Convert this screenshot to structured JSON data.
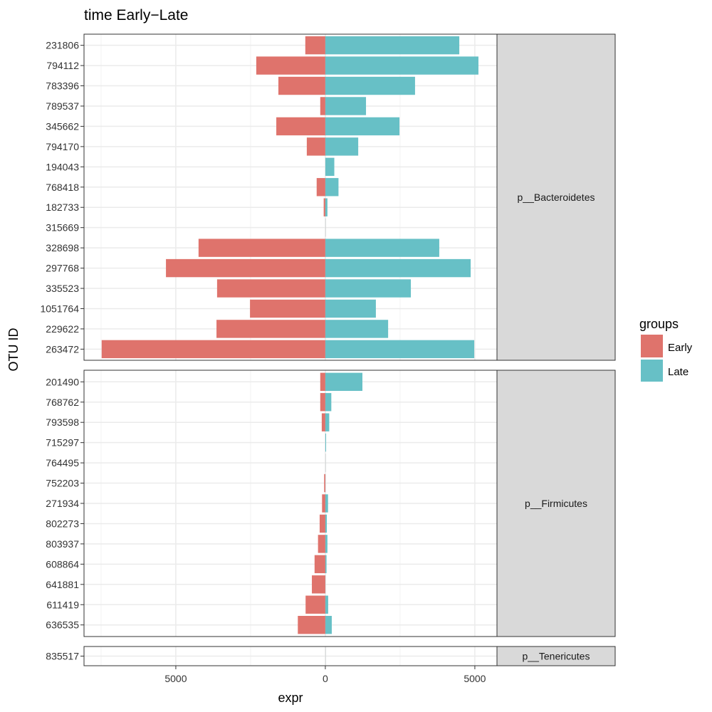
{
  "chart_data": {
    "type": "bar",
    "orientation": "horizontal",
    "title": "time Early−Late",
    "xlabel": "expr",
    "ylabel": "OTU ID",
    "xlim": [
      -8070,
      5740
    ],
    "x_ticks": [
      -5000,
      0,
      5000
    ],
    "x_tick_labels": [
      "5000",
      "0",
      "5000"
    ],
    "grid": true,
    "legend": {
      "title": "groups",
      "position": "right",
      "entries": [
        "Early",
        "Late"
      ]
    },
    "colors": {
      "Early": "#df736c",
      "Late": "#67c0c6"
    },
    "facets": [
      {
        "label": "p__Bacteroidetes",
        "categories": [
          "231806",
          "794112",
          "783396",
          "789537",
          "345662",
          "794170",
          "194043",
          "768418",
          "182733",
          "315669",
          "328698",
          "297768",
          "335523",
          "1051764",
          "229622",
          "263472"
        ],
        "series": [
          {
            "name": "Early",
            "values": [
              -670,
              -2310,
              -1570,
              -170,
              -1640,
              -620,
              0,
              -290,
              -55,
              0,
              -4240,
              -5330,
              -3620,
              -2520,
              -3640,
              -7480
            ]
          },
          {
            "name": "Late",
            "values": [
              4480,
              5120,
              3000,
              1360,
              2480,
              1100,
              300,
              440,
              70,
              0,
              3810,
              4860,
              2860,
              1690,
              2100,
              4980
            ]
          }
        ]
      },
      {
        "label": "p__Firmicutes",
        "categories": [
          "201490",
          "768762",
          "793598",
          "715297",
          "764495",
          "752203",
          "271934",
          "802273",
          "803937",
          "608864",
          "641881",
          "611419",
          "636535"
        ],
        "series": [
          {
            "name": "Early",
            "values": [
              -170,
              -170,
              -120,
              0,
              0,
              -40,
              -110,
              -190,
              -245,
              -360,
              -450,
              -660,
              -920
            ]
          },
          {
            "name": "Late",
            "values": [
              1240,
              200,
              130,
              25,
              0,
              0,
              90,
              50,
              70,
              40,
              0,
              95,
              215
            ]
          }
        ]
      },
      {
        "label": "p__Tenericutes",
        "categories": [
          "835517"
        ],
        "series": [
          {
            "name": "Early",
            "values": [
              0
            ]
          },
          {
            "name": "Late",
            "values": [
              0
            ]
          }
        ]
      }
    ]
  }
}
